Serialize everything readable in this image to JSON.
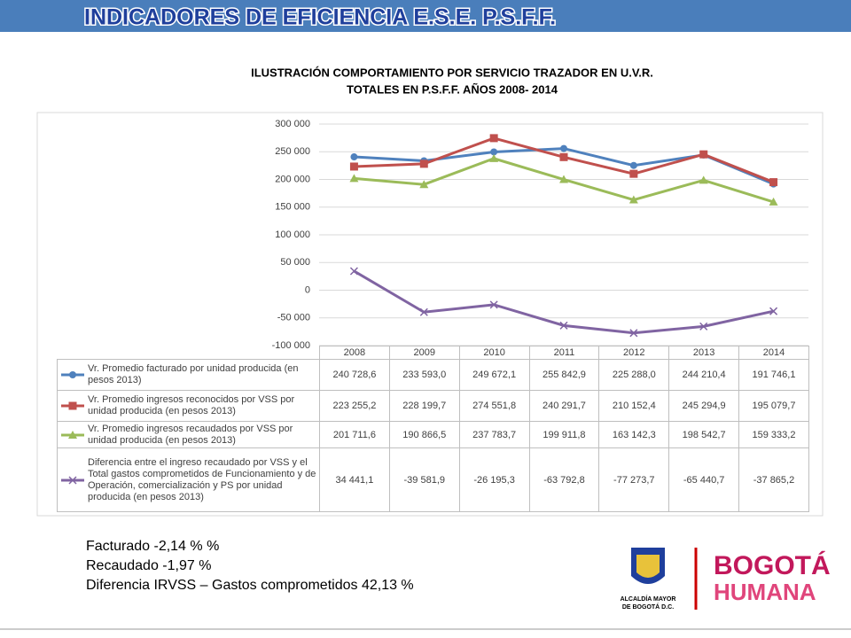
{
  "slide": {
    "title": "INDICADORES DE EFICIENCIA E.S.E. P.S.F.F.",
    "notes": [
      "Facturado -2,14 % %",
      "Recaudado -1,97 %",
      "Diferencia IRVSS – Gastos comprometidos 42,13 %"
    ],
    "logo_left": [
      "ALCALDÍA MAYOR",
      "DE BOGOTÁ D.C."
    ],
    "logo_right": [
      "BOGOTÁ",
      "HUMANA"
    ]
  },
  "chart_data": {
    "type": "line",
    "title": [
      "ILUSTRACIÓN COMPORTAMIENTO POR SERVICIO TRAZADOR EN U.V.R.",
      "TOTALES EN P.S.F.F. AÑOS 2008- 2014"
    ],
    "categories": [
      "2008",
      "2009",
      "2010",
      "2011",
      "2012",
      "2013",
      "2014"
    ],
    "ylim": [
      -100000,
      300000
    ],
    "yticks": [
      {
        "value": -100000,
        "label": "-100 000"
      },
      {
        "value": -50000,
        "label": "-50 000"
      },
      0,
      {
        "value": 50000,
        "label": "50 000"
      },
      {
        "value": 100000,
        "label": "100 000"
      },
      {
        "value": 150000,
        "label": "150 000"
      },
      {
        "value": 200000,
        "label": "200 000"
      },
      {
        "value": 250000,
        "label": "250 000"
      },
      {
        "value": 300000,
        "label": "300 000"
      }
    ],
    "grid": true,
    "series": [
      {
        "name": "Vr. Promedio facturado por unidad producida (en pesos 2013)",
        "color": "#4f81bd",
        "marker": "circle",
        "values": [
          240728.6,
          233593.0,
          249672.1,
          255842.9,
          225288.0,
          244210.4,
          191746.1
        ],
        "value_labels": [
          "240 728,6",
          "233 593,0",
          "249 672,1",
          "255 842,9",
          "225 288,0",
          "244 210,4",
          "191 746,1"
        ]
      },
      {
        "name": "Vr. Promedio ingresos reconocidos por VSS por unidad producida (en pesos 2013)",
        "color": "#c0504d",
        "marker": "square",
        "values": [
          223255.2,
          228199.7,
          274551.8,
          240291.7,
          210152.4,
          245294.9,
          195079.7
        ],
        "value_labels": [
          "223 255,2",
          "228 199,7",
          "274 551,8",
          "240 291,7",
          "210 152,4",
          "245 294,9",
          "195 079,7"
        ]
      },
      {
        "name": "Vr. Promedio ingresos recaudados por VSS por unidad producida (en pesos 2013)",
        "color": "#9bbb59",
        "marker": "triangle",
        "values": [
          201711.6,
          190866.5,
          237783.7,
          199911.8,
          163142.3,
          198542.7,
          159333.2
        ],
        "value_labels": [
          "201 711,6",
          "190 866,5",
          "237 783,7",
          "199 911,8",
          "163 142,3",
          "198 542,7",
          "159 333,2"
        ]
      },
      {
        "name": "Diferencia entre el ingreso recaudado por VSS y el Total gastos comprometidos de Funcionamiento y de Operación, comercialización y PS por unidad producida (en pesos 2013)",
        "color": "#8064a2",
        "marker": "x",
        "values": [
          34441.1,
          -39581.9,
          -26195.3,
          -63792.8,
          -77273.7,
          -65440.7,
          -37865.2
        ],
        "value_labels": [
          "34 441,1",
          "-39 581,9",
          "-26 195,3",
          "-63 792,8",
          "-77 273,7",
          "-65 440,7",
          "-37 865,2"
        ]
      }
    ]
  }
}
